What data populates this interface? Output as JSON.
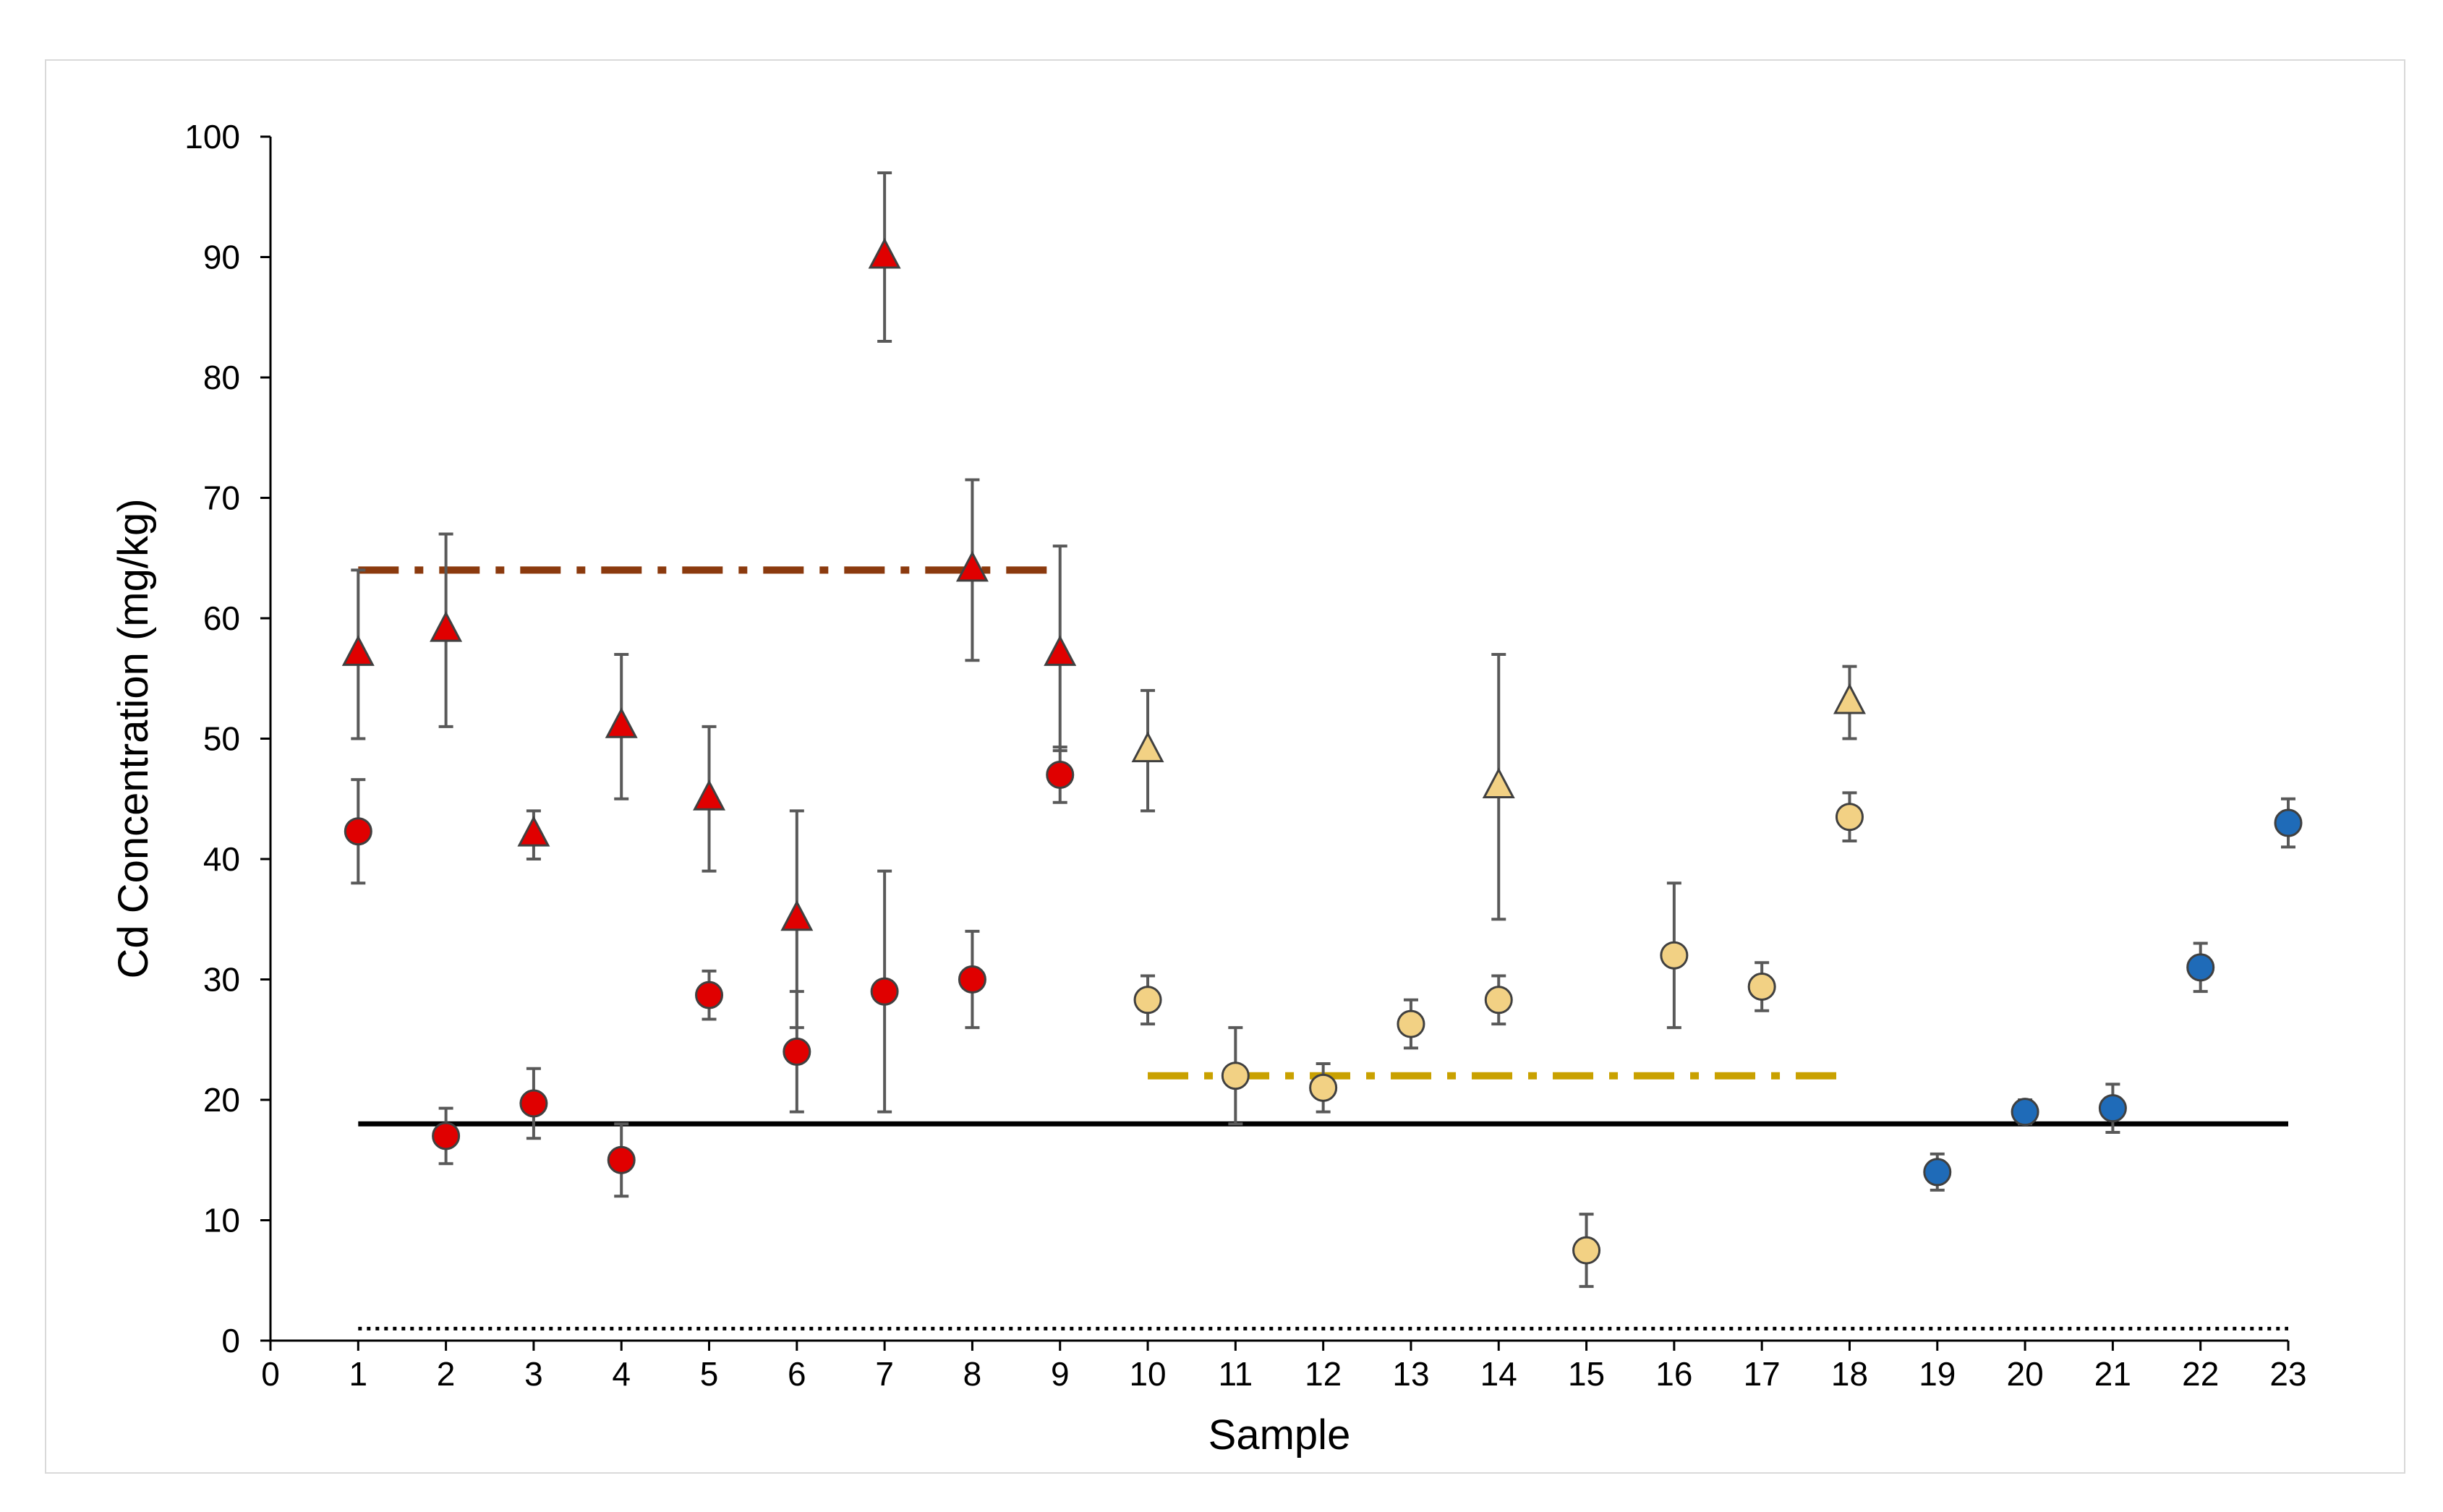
{
  "chart_data": {
    "type": "scatter",
    "title": "",
    "xlabel": "Sample",
    "ylabel": "Cd Concentration (mg/kg)",
    "xlim": [
      0,
      23
    ],
    "ylim": [
      0,
      100
    ],
    "xticks": [
      0,
      1,
      2,
      3,
      4,
      5,
      6,
      7,
      8,
      9,
      10,
      11,
      12,
      13,
      14,
      15,
      16,
      17,
      18,
      19,
      20,
      21,
      22,
      23
    ],
    "yticks": [
      0,
      10,
      20,
      30,
      40,
      50,
      60,
      70,
      80,
      90,
      100
    ],
    "colors": {
      "red": "#e00000",
      "yellow": "#f2d184",
      "blue": "#1f6bb8",
      "brown_line": "#8b3a0e",
      "gold_line": "#c9a100",
      "error_bar": "#595959"
    },
    "series": [
      {
        "name": "Red triangles",
        "marker": "triangle",
        "color": "red",
        "points": [
          {
            "x": 1,
            "y": 57,
            "lo": 50,
            "hi": 64
          },
          {
            "x": 2,
            "y": 59,
            "lo": 51,
            "hi": 67
          },
          {
            "x": 3,
            "y": 42,
            "lo": 40,
            "hi": 44
          },
          {
            "x": 4,
            "y": 51,
            "lo": 45,
            "hi": 57
          },
          {
            "x": 5,
            "y": 45,
            "lo": 39,
            "hi": 51
          },
          {
            "x": 6,
            "y": 35,
            "lo": 26,
            "hi": 44
          },
          {
            "x": 7,
            "y": 90,
            "lo": 83,
            "hi": 97
          },
          {
            "x": 8,
            "y": 64,
            "lo": 56.5,
            "hi": 71.5
          },
          {
            "x": 9,
            "y": 57,
            "lo": 49,
            "hi": 66
          }
        ]
      },
      {
        "name": "Red circles",
        "marker": "circle",
        "color": "red",
        "points": [
          {
            "x": 1,
            "y": 42.3,
            "lo": 38,
            "hi": 46.6
          },
          {
            "x": 2,
            "y": 17,
            "lo": 14.7,
            "hi": 19.3
          },
          {
            "x": 3,
            "y": 19.7,
            "lo": 16.8,
            "hi": 22.6
          },
          {
            "x": 4,
            "y": 15,
            "lo": 12,
            "hi": 18
          },
          {
            "x": 5,
            "y": 28.7,
            "lo": 26.7,
            "hi": 30.7
          },
          {
            "x": 6,
            "y": 24,
            "lo": 19,
            "hi": 29
          },
          {
            "x": 7,
            "y": 29,
            "lo": 19,
            "hi": 39
          },
          {
            "x": 8,
            "y": 30,
            "lo": 26,
            "hi": 34
          },
          {
            "x": 9,
            "y": 47,
            "lo": 44.7,
            "hi": 49.3
          }
        ]
      },
      {
        "name": "Yellow triangles",
        "marker": "triangle",
        "color": "yellow",
        "points": [
          {
            "x": 10,
            "y": 49,
            "lo": 44,
            "hi": 54
          },
          {
            "x": 14,
            "y": 46,
            "lo": 35,
            "hi": 57
          },
          {
            "x": 18,
            "y": 53,
            "lo": 50,
            "hi": 56
          }
        ]
      },
      {
        "name": "Yellow circles",
        "marker": "circle",
        "color": "yellow",
        "points": [
          {
            "x": 10,
            "y": 28.3,
            "lo": 26.3,
            "hi": 30.3
          },
          {
            "x": 11,
            "y": 22,
            "lo": 18,
            "hi": 26
          },
          {
            "x": 12,
            "y": 21,
            "lo": 19,
            "hi": 23
          },
          {
            "x": 13,
            "y": 26.3,
            "lo": 24.3,
            "hi": 28.3
          },
          {
            "x": 14,
            "y": 28.3,
            "lo": 26.3,
            "hi": 30.3
          },
          {
            "x": 15,
            "y": 7.5,
            "lo": 4.5,
            "hi": 10.5
          },
          {
            "x": 16,
            "y": 32,
            "lo": 26,
            "hi": 38
          },
          {
            "x": 17,
            "y": 29.4,
            "lo": 27.4,
            "hi": 31.4
          },
          {
            "x": 18,
            "y": 43.5,
            "lo": 41.5,
            "hi": 45.5
          }
        ]
      },
      {
        "name": "Blue circles",
        "marker": "circle",
        "color": "blue",
        "points": [
          {
            "x": 19,
            "y": 14,
            "lo": 12.5,
            "hi": 15.5
          },
          {
            "x": 20,
            "y": 19,
            "lo": 18,
            "hi": 20
          },
          {
            "x": 21,
            "y": 19.3,
            "lo": 17.3,
            "hi": 21.3
          },
          {
            "x": 22,
            "y": 31,
            "lo": 29,
            "hi": 33
          },
          {
            "x": 23,
            "y": 43,
            "lo": 41,
            "hi": 45
          }
        ]
      }
    ],
    "reference_lines": [
      {
        "name": "brown dash-dot",
        "y": 64,
        "x_start": 1,
        "x_end": 9,
        "style": "dashdot",
        "color": "brown_line"
      },
      {
        "name": "gold dash-dot",
        "y": 22,
        "x_start": 10,
        "x_end": 18,
        "style": "dashdot",
        "color": "gold_line"
      },
      {
        "name": "black solid",
        "y": 18,
        "x_start": 1,
        "x_end": 23,
        "style": "solid",
        "color": "#000000"
      },
      {
        "name": "black dotted",
        "y": 1,
        "x_start": 1,
        "x_end": 23,
        "style": "dotted",
        "color": "#000000"
      }
    ]
  }
}
